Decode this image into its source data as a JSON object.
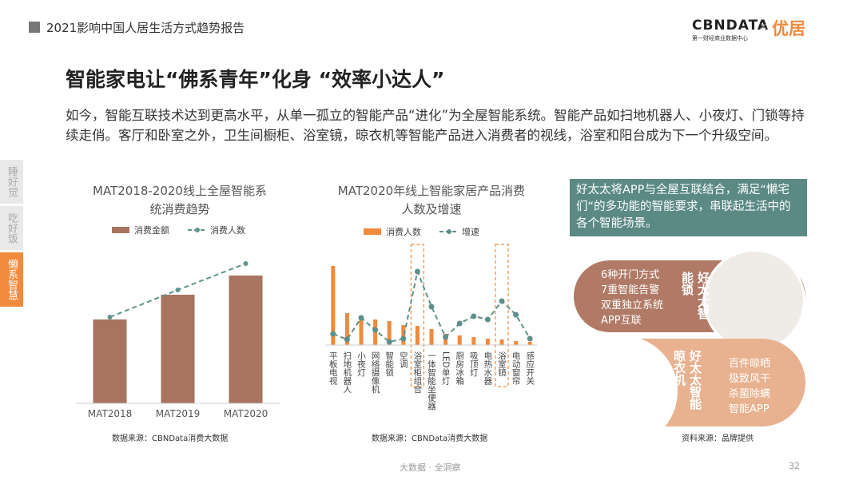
{
  "header": {
    "title": "2021影响中国人居生活方式趋势报告",
    "logo_main": "CBNDATA",
    "logo_sub": "第一财经商业数据中心",
    "logo_x": "×",
    "logo_partner": "优居"
  },
  "title": "智能家电让“佛系青年”化身 “效率小达人”",
  "body": "如今，智能互联技术达到更高水平，从单一孤立的智能产品“进化”为全屋智能系统。智能产品如扫地机器人、小夜灯、门锁等持续走俏。客厅和卧室之外，卫生间橱柜、浴室镜，晾衣机等智能产品进入消费者的视线，浴室和阳台成为下一个升级空间。",
  "side_tabs": [
    "睡好觉",
    "吃好饭",
    "懒系智慧"
  ],
  "chart_data": [
    {
      "type": "bar_line",
      "title": "MAT2018-2020线上全屋智能系统消费趋势",
      "categories": [
        "MAT2018",
        "MAT2019",
        "MAT2020"
      ],
      "series": [
        {
          "name": "消费金额",
          "type": "bar",
          "color": "#a8735f",
          "values": [
            105,
            136,
            160
          ]
        },
        {
          "name": "消费人数",
          "type": "line",
          "color": "#5f948c",
          "values": [
            108,
            142,
            175
          ]
        }
      ],
      "source": "数据来源：CBNData消费大数据"
    },
    {
      "type": "bar_line",
      "title": "MAT2020年线上智能家居产品消费人数及增速",
      "categories": [
        "平板电视",
        "扫地机器人",
        "小夜灯",
        "网络摄像机",
        "智能锁",
        "空调",
        "浴室柜组合",
        "一体智能坐便器",
        "LED单灯",
        "厨房冰箱",
        "吸顶灯",
        "电热水器",
        "浴室镜",
        "电动窗帘",
        "感应开关"
      ],
      "series": [
        {
          "name": "消费人数",
          "type": "bar",
          "color": "#f08a3c",
          "values": [
            99,
            40,
            37,
            32,
            30,
            25,
            24,
            20,
            14,
            12,
            10,
            8,
            7,
            5,
            4
          ]
        },
        {
          "name": "增速",
          "type": "line",
          "color": "#5f8f8a",
          "values": [
            14,
            7,
            34,
            19,
            4,
            8,
            92,
            48,
            10,
            27,
            36,
            32,
            55,
            38,
            8
          ]
        }
      ],
      "source": "数据来源：CBNData消费大数据"
    }
  ],
  "callout": "好太太将APP与全屋互联结合，满足“懒宅们“的多功能的智能要求，串联起生活中的各个智能场景。",
  "products": [
    {
      "name": "好太太智能锁",
      "features": [
        "6种开门方式",
        "7重智能告警",
        "双重独立系统",
        "APP互联"
      ]
    },
    {
      "name": "好太太智能晾衣机",
      "features": [
        "百件晾晒",
        "极致风干",
        "杀菌除螨",
        "智能APP"
      ]
    }
  ],
  "source3": "资料来源：品牌提供",
  "footer": "大数据 · 全洞察",
  "page": "32"
}
